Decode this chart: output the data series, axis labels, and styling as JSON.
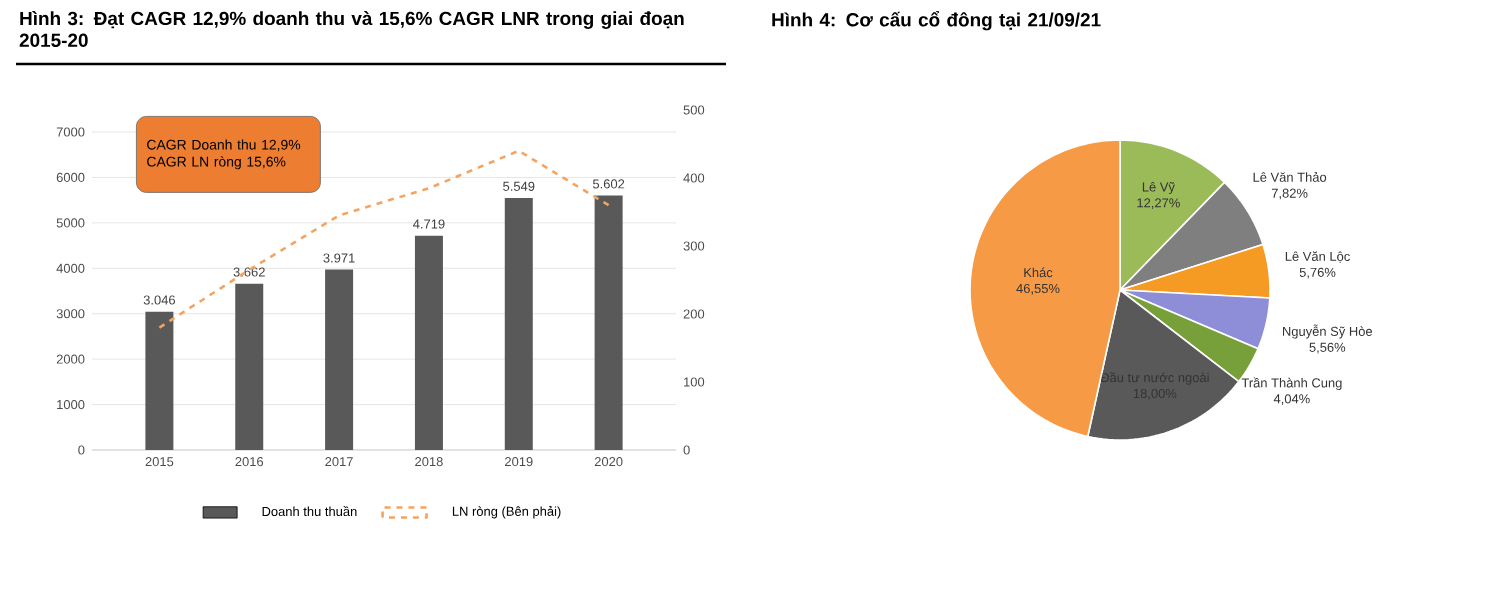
{
  "chart_data": [
    {
      "type": "bar",
      "title": "Hình 3: Đạt CAGR 12,9% doanh thu và 15,6% CAGR LNR trong giai đoạn 2015-20",
      "categories": [
        "2015",
        "2016",
        "2017",
        "2018",
        "2019",
        "2020"
      ],
      "series": [
        {
          "name": "Doanh thu thuần",
          "type": "bar",
          "color": "#595959",
          "values": [
            3046,
            3662,
            3971,
            4719,
            5549,
            5602
          ],
          "value_labels": [
            "3.046",
            "3.662",
            "3.971",
            "4.719",
            "5.549",
            "5.602"
          ]
        },
        {
          "name": "LN ròng (Bên phải)",
          "type": "line",
          "axis": "y2",
          "color": "#f4a460",
          "line_style": "dashed",
          "values": [
            180,
            265,
            345,
            385,
            440,
            360
          ]
        }
      ],
      "ylim": [
        0,
        7000
      ],
      "yticks": [
        0,
        1000,
        2000,
        3000,
        4000,
        5000,
        6000,
        7000
      ],
      "y2lim": [
        0,
        500
      ],
      "y2ticks": [
        0,
        100,
        200,
        300,
        400,
        500
      ],
      "grid": "y",
      "legend": "bottom",
      "annotations": [
        "CAGR Doanh thu 12,9%",
        "CAGR LN ròng  15,6%"
      ]
    },
    {
      "type": "pie",
      "title": "Hình 4: Cơ cấu cổ đông tại 21/09/21",
      "categories": [
        "Lê Vỹ",
        "Lê Văn Thảo",
        "Lê Văn Lộc",
        "Nguyễn Sỹ Hòe",
        "Trần Thành Cung",
        "Đầu tư nước ngoài",
        "Khác"
      ],
      "values": [
        12.27,
        7.82,
        5.76,
        5.56,
        4.04,
        18.0,
        46.55
      ],
      "value_labels": [
        "12,27%",
        "7,82%",
        "5,76%",
        "5,56%",
        "4,04%",
        "18,00%",
        "46,55%"
      ],
      "colors": [
        "#9bbb59",
        "#7f7f7f",
        "#f59a23",
        "#8e8ed8",
        "#77a03a",
        "#595959",
        "#f79a45"
      ]
    }
  ]
}
